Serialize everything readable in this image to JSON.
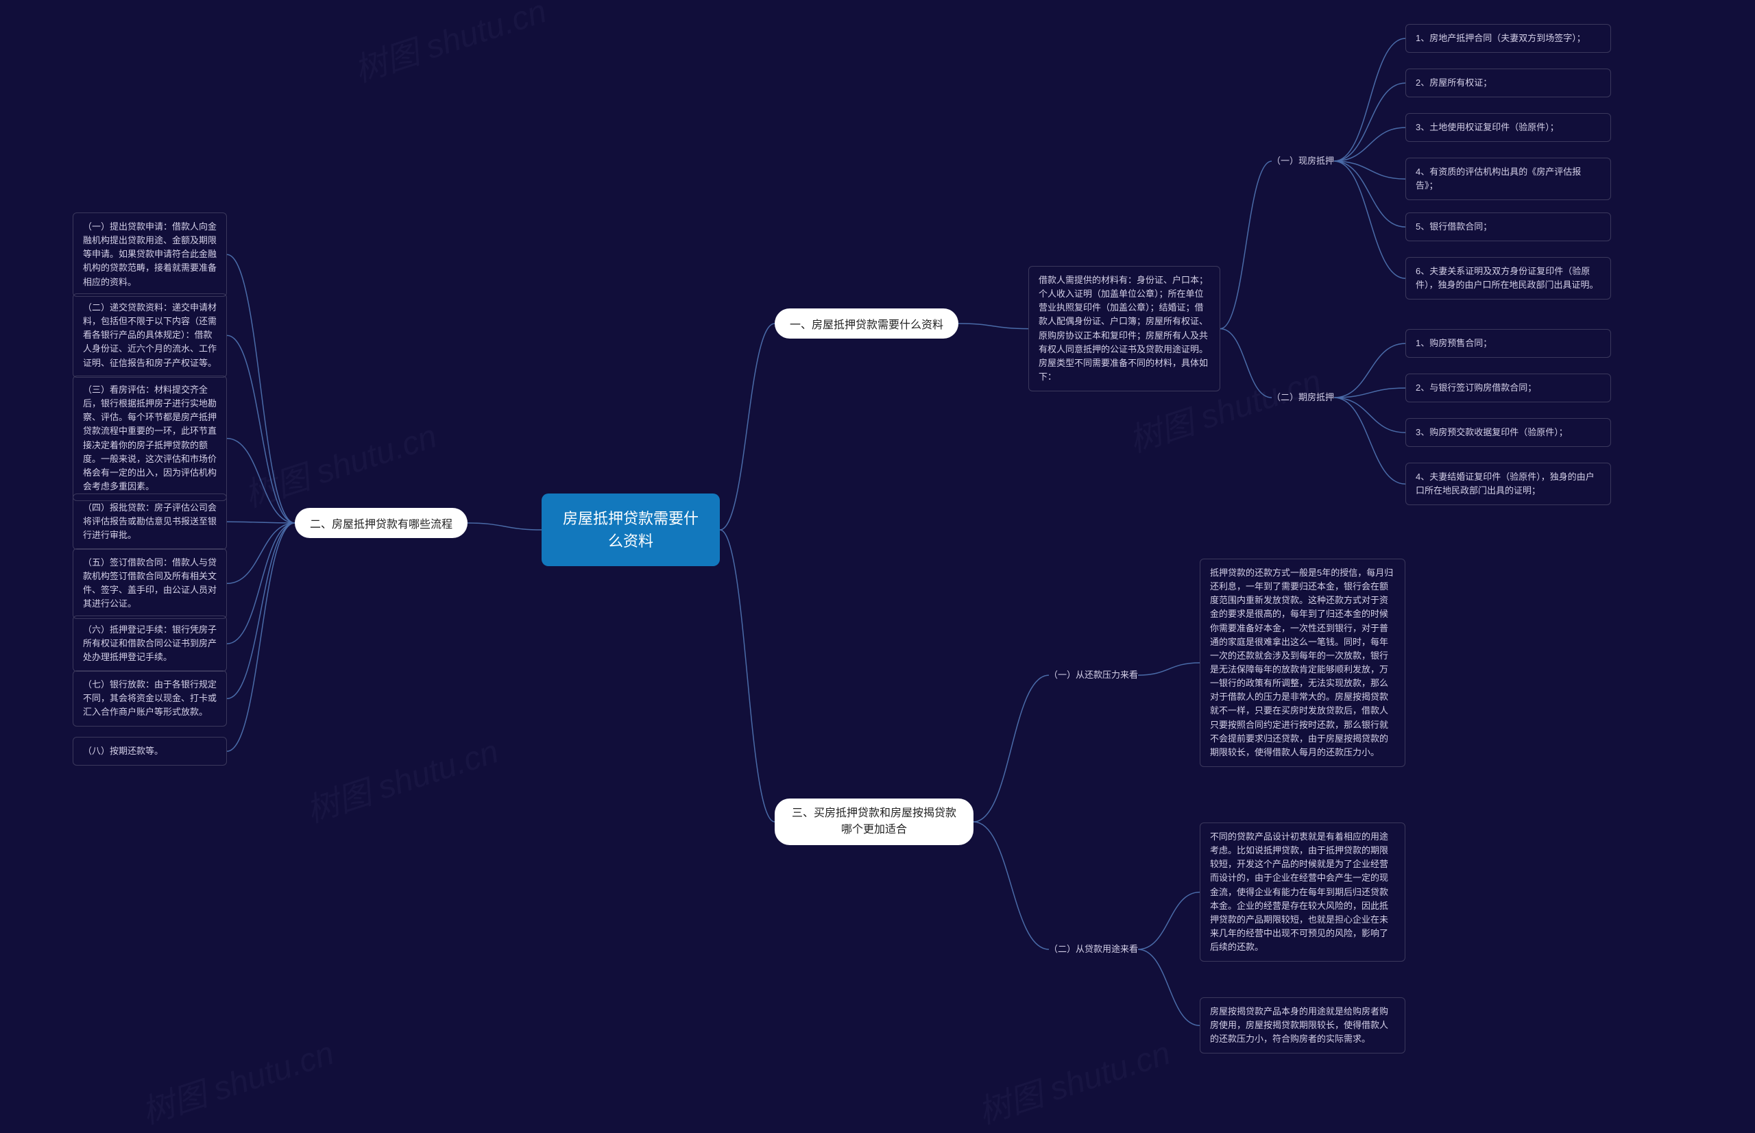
{
  "bg_color": "#110e3a",
  "root": {
    "label": "房屋抵押贷款需要什么资料",
    "bg": "#1278bd",
    "fg": "#ffffff"
  },
  "watermark": "树图 shutu.cn",
  "section1": {
    "title": "一、房屋抵押贷款需要什么资料",
    "intro": "借款人需提供的材料有：身份证、户口本；个人收入证明（加盖单位公章）；所在单位营业执照复印件（加盖公章）；结婚证；借款人配偶身份证、户口簿；房屋所有权证、原购房协议正本和复印件；房屋所有人及共有权人同意抵押的公证书及贷款用途证明。房屋类型不同需要准备不同的材料，具体如下：",
    "group_a": {
      "label": "（一）现房抵押",
      "items": [
        "1、房地产抵押合同（夫妻双方到场签字）；",
        "2、房屋所有权证；",
        "3、土地使用权证复印件（验原件）；",
        "4、有资质的评估机构出具的《房产评估报告》；",
        "5、银行借款合同；",
        "6、夫妻关系证明及双方身份证复印件（验原件），独身的由户口所在地民政部门出具证明。"
      ]
    },
    "group_b": {
      "label": "（二）期房抵押",
      "items": [
        "1、购房预售合同；",
        "2、与银行签订购房借款合同；",
        "3、购房预交款收据复印件（验原件）；",
        "4、夫妻结婚证复印件（验原件），独身的由户口所在地民政部门出具的证明；"
      ]
    }
  },
  "section2": {
    "title": "二、房屋抵押贷款有哪些流程",
    "items": [
      "（一）提出贷款申请：借款人向金融机构提出贷款用途、金额及期限等申请。如果贷款申请符合此金融机构的贷款范畴，接着就需要准备相应的资料。",
      "（二）递交贷款资料：递交申请材料，包括但不限于以下内容（还需看各银行产品的具体规定）：借款人身份证、近六个月的流水、工作证明、征信报告和房子产权证等。",
      "（三）看房评估：材料提交齐全后，银行根据抵押房子进行实地勘察、评估。每个环节都是房产抵押贷款流程中重要的一环，此环节直接决定着你的房子抵押贷款的额度。一般来说，这次评估和市场价格会有一定的出入，因为评估机构会考虑多重因素。",
      "（四）报批贷款：房子评估公司会将评估报告或勘估意见书报送至银行进行审批。",
      "（五）签订借款合同：借款人与贷款机构签订借款合同及所有相关文件、签字、盖手印，由公证人员对其进行公证。",
      "（六）抵押登记手续：银行凭房子所有权证和借款合同公证书到房产处办理抵押登记手续。",
      "（七）银行放款：由于各银行规定不同，其会将资金以现金、打卡或汇入合作商户账户等形式放款。",
      "（八）按期还款等。"
    ]
  },
  "section3": {
    "title": "三、买房抵押贷款和房屋按揭贷款哪个更加适合",
    "group_a": {
      "label": "（一）从还款压力来看",
      "text": "抵押贷款的还款方式一般是5年的授信，每月归还利息，一年到了需要归还本金，银行会在额度范围内重新发放贷款。这种还款方式对于资金的要求是很高的，每年到了归还本金的时候你需要准备好本金，一次性还到银行，对于普通的家庭是很难拿出这么一笔钱。同时，每年一次的还款就会涉及到每年的一次放款，银行是无法保障每年的放款肯定能够顺利发放，万一银行的政策有所调整，无法实现放款，那么对于借款人的压力是非常大的。房屋按揭贷款就不一样，只要在买房时发放贷款后，借款人只要按照合同约定进行按时还款，那么银行就不会提前要求归还贷款，由于房屋按揭贷款的期限较长，使得借款人每月的还款压力小。"
    },
    "group_b": {
      "label": "（二）从贷款用途来看",
      "text1": "不同的贷款产品设计初衷就是有着相应的用途考虑。比如说抵押贷款，由于抵押贷款的期限较短，开发这个产品的时候就是为了企业经营而设计的，由于企业在经营中会产生一定的现金流，使得企业有能力在每年到期后归还贷款本金。企业的经营是存在较大风险的，因此抵押贷款的产品期限较短，也就是担心企业在未来几年的经营中出现不可预见的风险，影响了后续的还款。",
      "text2": "房屋按揭贷款产品本身的用途就是给购房者购房使用，房屋按揭贷款期限较长，使得借款人的还款压力小，符合购房者的实际需求。"
    }
  }
}
